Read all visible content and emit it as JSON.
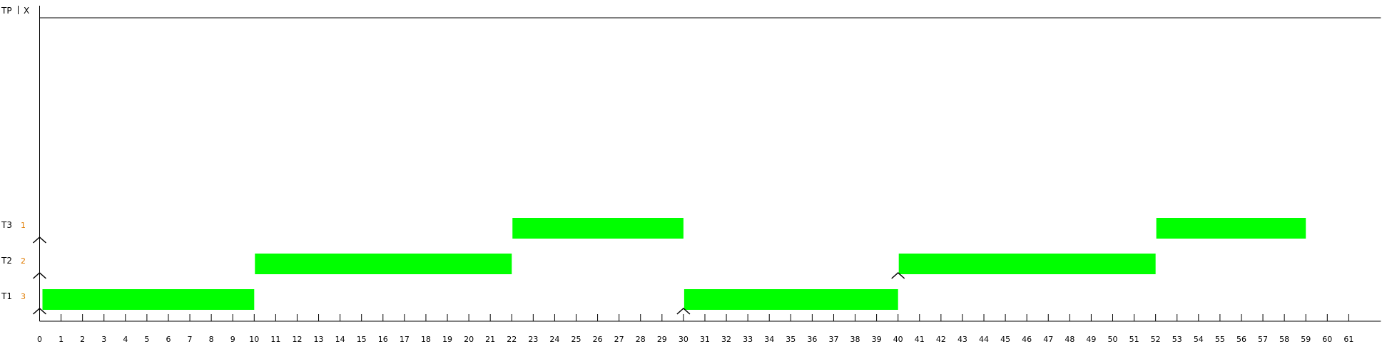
{
  "chart_data": {
    "type": "gantt",
    "x_range": [
      0,
      61
    ],
    "x_ticks": [
      0,
      1,
      2,
      3,
      4,
      5,
      6,
      7,
      8,
      9,
      10,
      11,
      12,
      13,
      14,
      15,
      16,
      17,
      18,
      19,
      20,
      21,
      22,
      23,
      24,
      25,
      26,
      27,
      28,
      29,
      30,
      31,
      32,
      33,
      34,
      35,
      36,
      37,
      38,
      39,
      40,
      41,
      42,
      43,
      44,
      45,
      46,
      47,
      48,
      49,
      50,
      51,
      52,
      53,
      54,
      55,
      56,
      57,
      58,
      59,
      60,
      61
    ],
    "tp_row": {
      "label": "TP",
      "marker": "X",
      "marker_color": "#00aa00"
    },
    "tasks": [
      {
        "name": "T1",
        "priority": "3",
        "arrivals": [
          0,
          30
        ],
        "intervals": [
          {
            "start": 0,
            "end": 10
          },
          {
            "start": 30,
            "end": 40
          }
        ]
      },
      {
        "name": "T2",
        "priority": "2",
        "arrivals": [
          0,
          40
        ],
        "intervals": [
          {
            "start": 10,
            "end": 22
          },
          {
            "start": 40,
            "end": 52
          }
        ]
      },
      {
        "name": "T3",
        "priority": "1",
        "arrivals": [
          0
        ],
        "intervals": [
          {
            "start": 22,
            "end": 30
          },
          {
            "start": 52,
            "end": 59
          }
        ]
      }
    ],
    "colors": {
      "bar": "#00ff00",
      "axis": "#000000",
      "priority": "#e07b00"
    }
  }
}
